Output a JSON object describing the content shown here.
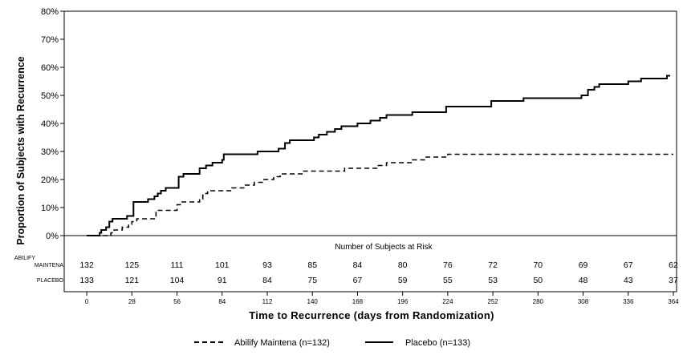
{
  "chart_data": {
    "type": "line",
    "subtype": "step",
    "title": "",
    "xlabel": "Time to Recurrence (days from Randomization)",
    "ylabel": "Proportion of Subjects with Recurrence",
    "xlim": [
      -14,
      366
    ],
    "ylim": [
      0,
      80
    ],
    "x_ticks": [
      0,
      28,
      56,
      84,
      112,
      140,
      168,
      196,
      224,
      252,
      280,
      308,
      336,
      364
    ],
    "x_tick_labels": [
      "0",
      "28",
      "56",
      "84",
      "112",
      "140",
      "168",
      "196",
      "224",
      "252",
      "280",
      "308",
      "336",
      "364"
    ],
    "y_ticks": [
      0,
      10,
      20,
      30,
      40,
      50,
      60,
      70,
      80
    ],
    "y_tick_labels": [
      "0%",
      "10%",
      "20%",
      "30%",
      "40%",
      "50%",
      "60%",
      "70%",
      "80%"
    ],
    "grid": false,
    "legend_position": "bottom-center",
    "series": [
      {
        "name": "Abilify Maintena (n=132)",
        "style": "dashed",
        "points": [
          [
            0,
            0
          ],
          [
            14,
            0
          ],
          [
            15,
            1
          ],
          [
            17,
            2
          ],
          [
            22,
            3
          ],
          [
            26,
            4
          ],
          [
            28,
            5
          ],
          [
            31,
            6
          ],
          [
            42,
            6
          ],
          [
            43,
            9
          ],
          [
            54,
            9
          ],
          [
            56,
            11
          ],
          [
            58,
            12
          ],
          [
            68,
            12
          ],
          [
            70,
            13
          ],
          [
            72,
            15
          ],
          [
            75,
            16
          ],
          [
            84,
            16
          ],
          [
            90,
            17
          ],
          [
            98,
            18
          ],
          [
            104,
            19
          ],
          [
            110,
            20
          ],
          [
            116,
            21
          ],
          [
            120,
            22
          ],
          [
            130,
            22
          ],
          [
            134,
            23
          ],
          [
            150,
            23
          ],
          [
            160,
            24
          ],
          [
            175,
            24
          ],
          [
            181,
            25
          ],
          [
            186,
            26
          ],
          [
            198,
            26
          ],
          [
            202,
            27
          ],
          [
            210,
            28
          ],
          [
            220,
            28
          ],
          [
            224,
            29
          ],
          [
            364,
            29
          ]
        ]
      },
      {
        "name": "Placebo (n=133)",
        "style": "solid",
        "points": [
          [
            0,
            0
          ],
          [
            7,
            0
          ],
          [
            8,
            1
          ],
          [
            9,
            2
          ],
          [
            12,
            3
          ],
          [
            14,
            5
          ],
          [
            16,
            6
          ],
          [
            24,
            6
          ],
          [
            25,
            7
          ],
          [
            28,
            7
          ],
          [
            29,
            12
          ],
          [
            37,
            12
          ],
          [
            38,
            13
          ],
          [
            42,
            14
          ],
          [
            44,
            15
          ],
          [
            46,
            16
          ],
          [
            49,
            17
          ],
          [
            56,
            17
          ],
          [
            57,
            21
          ],
          [
            60,
            22
          ],
          [
            68,
            22
          ],
          [
            70,
            24
          ],
          [
            74,
            25
          ],
          [
            78,
            26
          ],
          [
            84,
            27
          ],
          [
            85,
            29
          ],
          [
            105,
            29
          ],
          [
            106,
            30
          ],
          [
            118,
            30
          ],
          [
            119,
            31
          ],
          [
            123,
            33
          ],
          [
            126,
            34
          ],
          [
            139,
            34
          ],
          [
            141,
            35
          ],
          [
            144,
            36
          ],
          [
            149,
            37
          ],
          [
            154,
            38
          ],
          [
            158,
            39
          ],
          [
            166,
            39
          ],
          [
            168,
            40
          ],
          [
            176,
            41
          ],
          [
            182,
            42
          ],
          [
            186,
            43
          ],
          [
            200,
            43
          ],
          [
            202,
            44
          ],
          [
            222,
            44
          ],
          [
            223,
            46
          ],
          [
            250,
            46
          ],
          [
            251,
            48
          ],
          [
            270,
            48
          ],
          [
            271,
            49
          ],
          [
            306,
            49
          ],
          [
            307,
            50
          ],
          [
            311,
            52
          ],
          [
            315,
            53
          ],
          [
            318,
            54
          ],
          [
            334,
            54
          ],
          [
            336,
            55
          ],
          [
            344,
            56
          ],
          [
            359,
            56
          ],
          [
            360,
            57
          ],
          [
            362,
            57
          ]
        ]
      }
    ],
    "risk_table": {
      "title": "Number of Subjects at Risk",
      "rows": [
        {
          "label_line1": "ABILIFY",
          "label_line2": "MAINTENA",
          "values": [
            "132",
            "125",
            "111",
            "101",
            "93",
            "85",
            "84",
            "80",
            "76",
            "72",
            "70",
            "69",
            "67",
            "62"
          ]
        },
        {
          "label_line1": "PLACEBO",
          "label_line2": "",
          "values": [
            "133",
            "121",
            "104",
            "91",
            "84",
            "75",
            "67",
            "59",
            "55",
            "53",
            "50",
            "48",
            "43",
            "37"
          ]
        }
      ]
    }
  }
}
